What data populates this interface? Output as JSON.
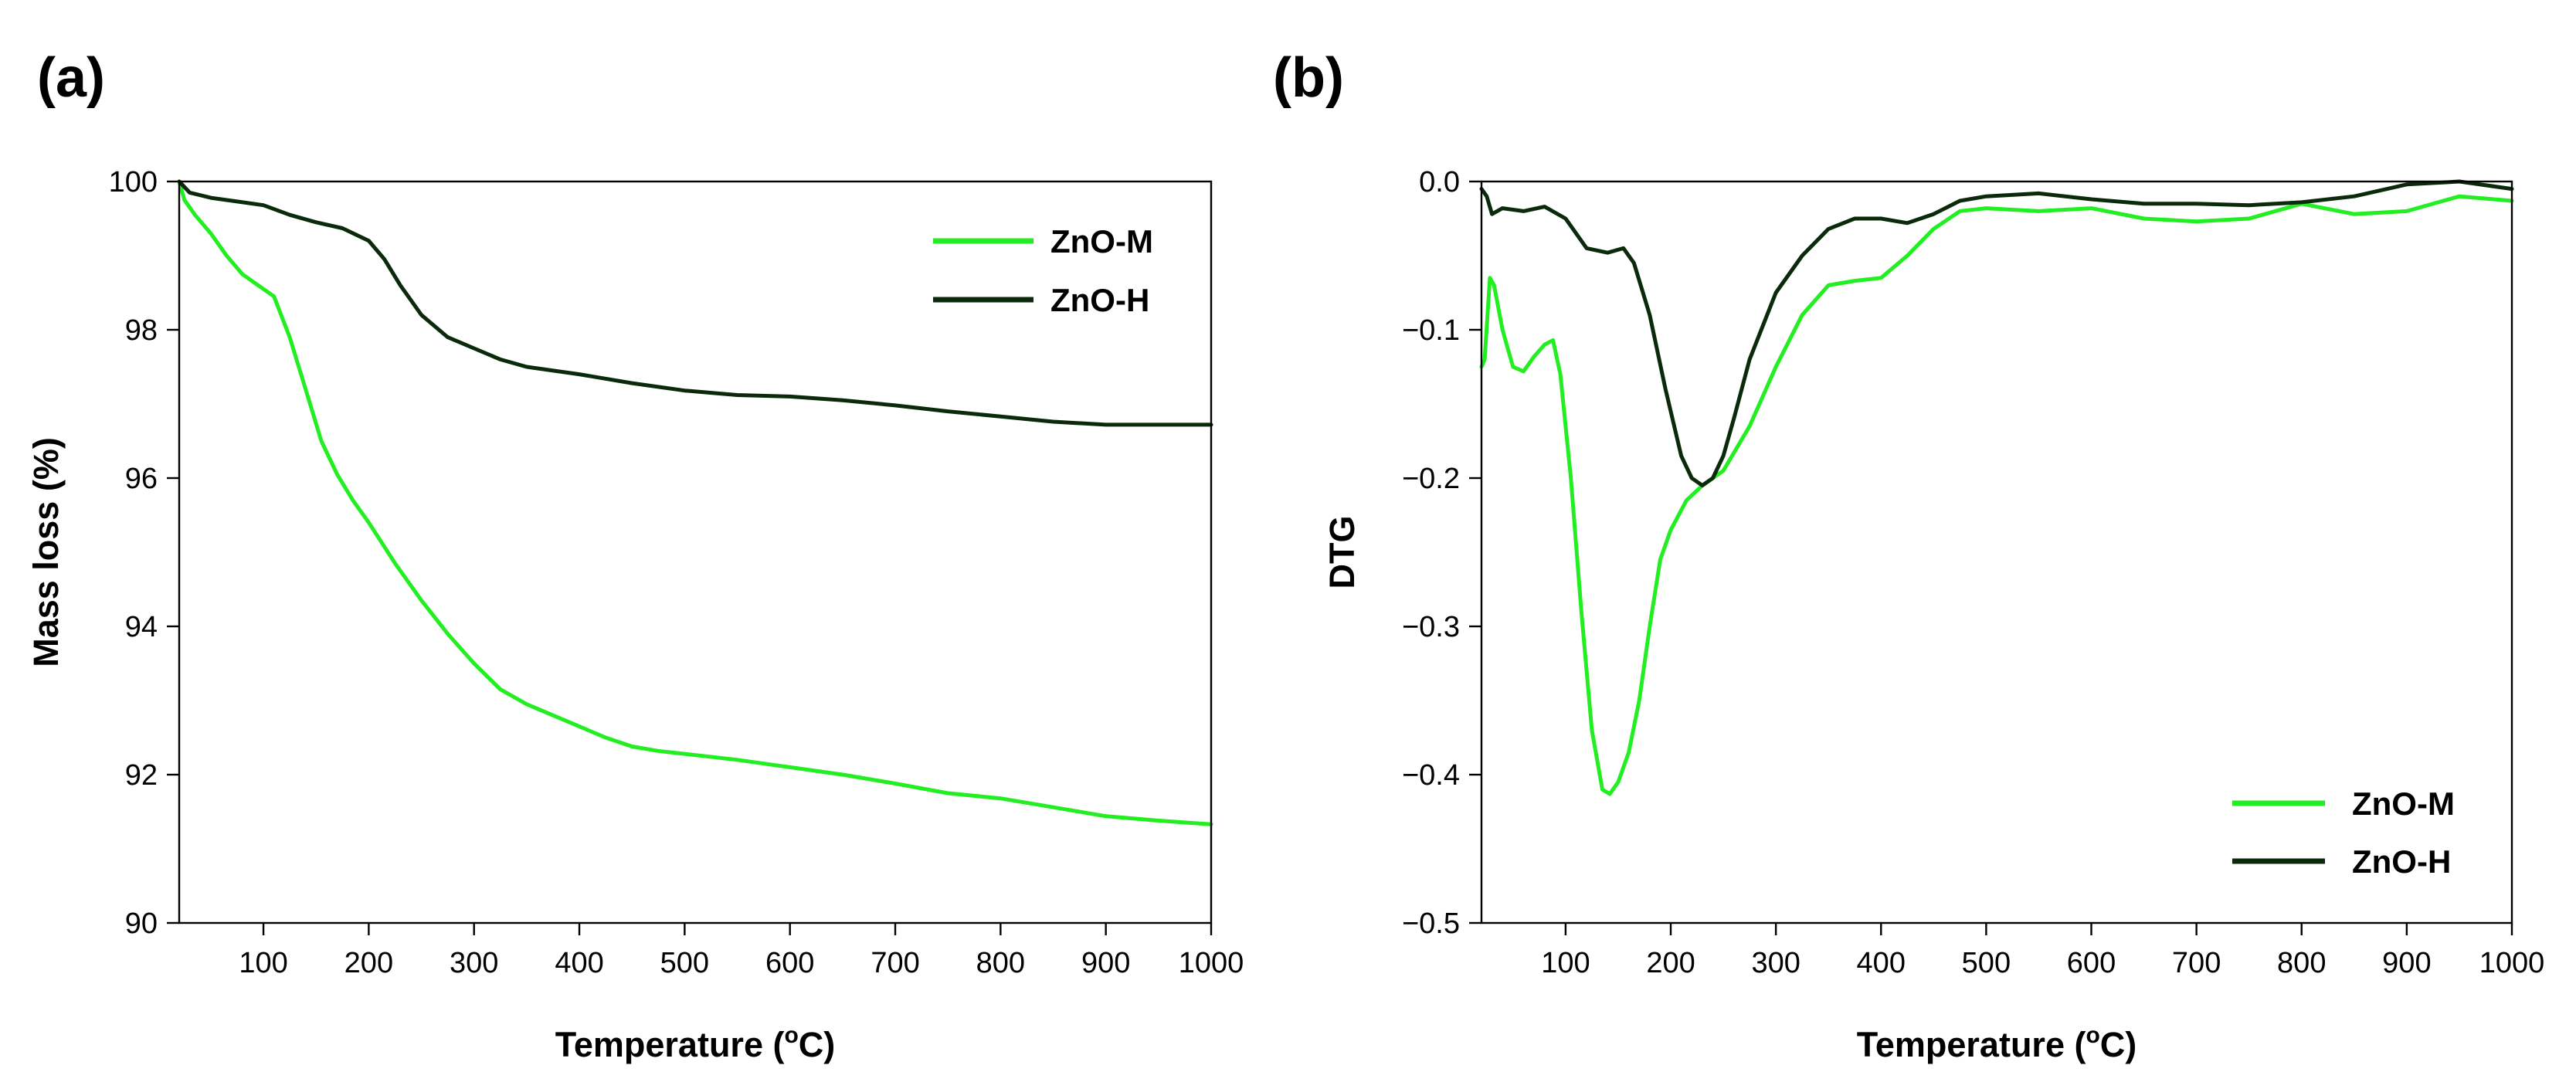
{
  "colors": {
    "zno_m": "#22ee22",
    "zno_h": "#0b2a0b"
  },
  "chart_data": [
    {
      "panel_label": "(a)",
      "type": "line",
      "xlabel_main": "Temperature (",
      "xlabel_sup": "o",
      "xlabel_end": "C)",
      "ylabel": "Mass loss (%)",
      "xlim": [
        20,
        1000
      ],
      "ylim": [
        90,
        100
      ],
      "xticks": [
        100,
        200,
        300,
        400,
        500,
        600,
        700,
        800,
        900,
        1000
      ],
      "xtick_labels": [
        "100",
        "200",
        "300",
        "400",
        "500",
        "600",
        "700",
        "800",
        "900",
        "1000"
      ],
      "yticks": [
        90,
        92,
        94,
        96,
        98,
        100
      ],
      "ytick_labels": [
        "90",
        "92",
        "94",
        "96",
        "98",
        "100"
      ],
      "legend": {
        "position": "top-right",
        "entries": [
          "ZnO-M",
          "ZnO-H"
        ]
      },
      "series": [
        {
          "name": "ZnO-M",
          "color_key": "zno_m",
          "x": [
            20,
            25,
            35,
            50,
            65,
            80,
            95,
            110,
            125,
            140,
            155,
            170,
            185,
            200,
            225,
            250,
            275,
            300,
            325,
            350,
            375,
            400,
            425,
            450,
            475,
            500,
            550,
            600,
            650,
            700,
            750,
            800,
            850,
            900,
            950,
            1000
          ],
          "y": [
            100.0,
            99.75,
            99.55,
            99.3,
            99.0,
            98.75,
            98.6,
            98.45,
            97.9,
            97.2,
            96.5,
            96.05,
            95.7,
            95.4,
            94.85,
            94.35,
            93.9,
            93.5,
            93.15,
            92.95,
            92.8,
            92.65,
            92.5,
            92.38,
            92.32,
            92.28,
            92.2,
            92.1,
            92.0,
            91.88,
            91.75,
            91.68,
            91.56,
            91.44,
            91.38,
            91.33
          ]
        },
        {
          "name": "ZnO-H",
          "color_key": "zno_h",
          "x": [
            20,
            30,
            50,
            75,
            100,
            125,
            150,
            175,
            200,
            215,
            230,
            250,
            275,
            300,
            325,
            350,
            400,
            450,
            500,
            550,
            600,
            650,
            700,
            750,
            800,
            850,
            900,
            950,
            1000
          ],
          "y": [
            100.0,
            99.85,
            99.78,
            99.73,
            99.68,
            99.55,
            99.45,
            99.37,
            99.2,
            98.95,
            98.6,
            98.2,
            97.9,
            97.75,
            97.6,
            97.5,
            97.4,
            97.28,
            97.18,
            97.12,
            97.1,
            97.05,
            96.98,
            96.9,
            96.83,
            96.76,
            96.72,
            96.72,
            96.72
          ]
        }
      ]
    },
    {
      "panel_label": "(b)",
      "type": "line",
      "xlabel_main": "Temperature (",
      "xlabel_sup": "o",
      "xlabel_end": "C)",
      "ylabel": "DTG",
      "xlim": [
        20,
        1000
      ],
      "ylim": [
        -0.5,
        0.0
      ],
      "xticks": [
        100,
        200,
        300,
        400,
        500,
        600,
        700,
        800,
        900,
        1000
      ],
      "xtick_labels": [
        "100",
        "200",
        "300",
        "400",
        "500",
        "600",
        "700",
        "800",
        "900",
        "1000"
      ],
      "yticks": [
        -0.5,
        -0.4,
        -0.3,
        -0.2,
        -0.1,
        0.0
      ],
      "ytick_labels": [
        "−0.5",
        "−0.4",
        "−0.3",
        "−0.2",
        "−0.1",
        "0.0"
      ],
      "legend": {
        "position": "bottom-right",
        "entries": [
          "ZnO-M",
          "ZnO-H"
        ]
      },
      "series": [
        {
          "name": "ZnO-M",
          "color_key": "zno_m",
          "x": [
            20,
            23,
            28,
            32,
            40,
            50,
            60,
            70,
            80,
            88,
            95,
            105,
            115,
            125,
            135,
            142,
            150,
            160,
            170,
            180,
            190,
            200,
            215,
            230,
            250,
            275,
            300,
            325,
            350,
            375,
            400,
            425,
            450,
            475,
            500,
            550,
            600,
            650,
            700,
            750,
            800,
            850,
            900,
            950,
            1000
          ],
          "y": [
            -0.125,
            -0.12,
            -0.065,
            -0.07,
            -0.1,
            -0.125,
            -0.128,
            -0.118,
            -0.11,
            -0.107,
            -0.13,
            -0.2,
            -0.29,
            -0.37,
            -0.41,
            -0.413,
            -0.405,
            -0.385,
            -0.35,
            -0.3,
            -0.255,
            -0.235,
            -0.215,
            -0.205,
            -0.195,
            -0.165,
            -0.125,
            -0.09,
            -0.07,
            -0.067,
            -0.065,
            -0.05,
            -0.032,
            -0.02,
            -0.018,
            -0.02,
            -0.018,
            -0.025,
            -0.027,
            -0.025,
            -0.015,
            -0.022,
            -0.02,
            -0.01,
            -0.013
          ]
        },
        {
          "name": "ZnO-H",
          "color_key": "zno_h",
          "x": [
            20,
            25,
            30,
            40,
            60,
            80,
            100,
            120,
            140,
            155,
            165,
            180,
            195,
            210,
            220,
            230,
            240,
            250,
            260,
            275,
            300,
            325,
            350,
            375,
            400,
            425,
            450,
            475,
            500,
            550,
            600,
            650,
            700,
            750,
            800,
            850,
            900,
            950,
            1000
          ],
          "y": [
            -0.005,
            -0.01,
            -0.022,
            -0.018,
            -0.02,
            -0.017,
            -0.025,
            -0.045,
            -0.048,
            -0.045,
            -0.055,
            -0.09,
            -0.14,
            -0.185,
            -0.2,
            -0.205,
            -0.2,
            -0.185,
            -0.16,
            -0.12,
            -0.075,
            -0.05,
            -0.032,
            -0.025,
            -0.025,
            -0.028,
            -0.022,
            -0.013,
            -0.01,
            -0.008,
            -0.012,
            -0.015,
            -0.015,
            -0.016,
            -0.014,
            -0.01,
            -0.002,
            0.0,
            -0.005
          ]
        }
      ]
    }
  ]
}
